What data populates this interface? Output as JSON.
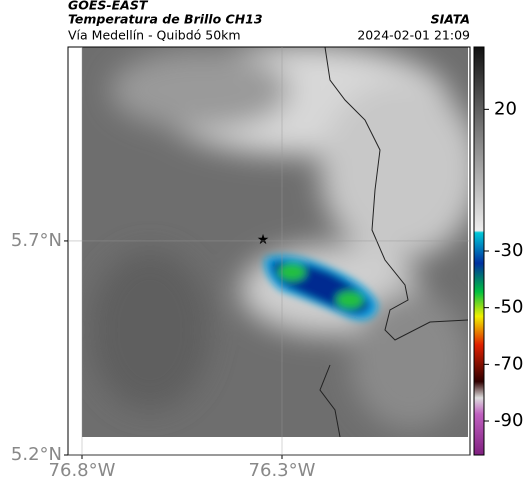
{
  "header": {
    "source": "GOES-EAST",
    "title": "Temperatura de Brillo CH13",
    "subtitle": "Vía Medellín - Quibdó 50km",
    "credit": "SIATA",
    "datetime": "2024-02-01 21:09"
  },
  "map": {
    "xlim": [
      -76.835,
      -75.83
    ],
    "ylim": [
      5.2,
      6.153
    ],
    "xticks": [
      {
        "value": -76.8,
        "label": "76.8°W"
      },
      {
        "value": -76.3,
        "label": "76.3°W"
      }
    ],
    "yticks": [
      {
        "value": 5.7,
        "label": "5.7°N"
      },
      {
        "value": 5.2,
        "label": "5.2°N"
      }
    ],
    "grid": true
  },
  "colorbar": {
    "clim": [
      -102,
      42
    ],
    "ticks": [
      20,
      -30,
      -50,
      -70,
      -90
    ]
  }
}
